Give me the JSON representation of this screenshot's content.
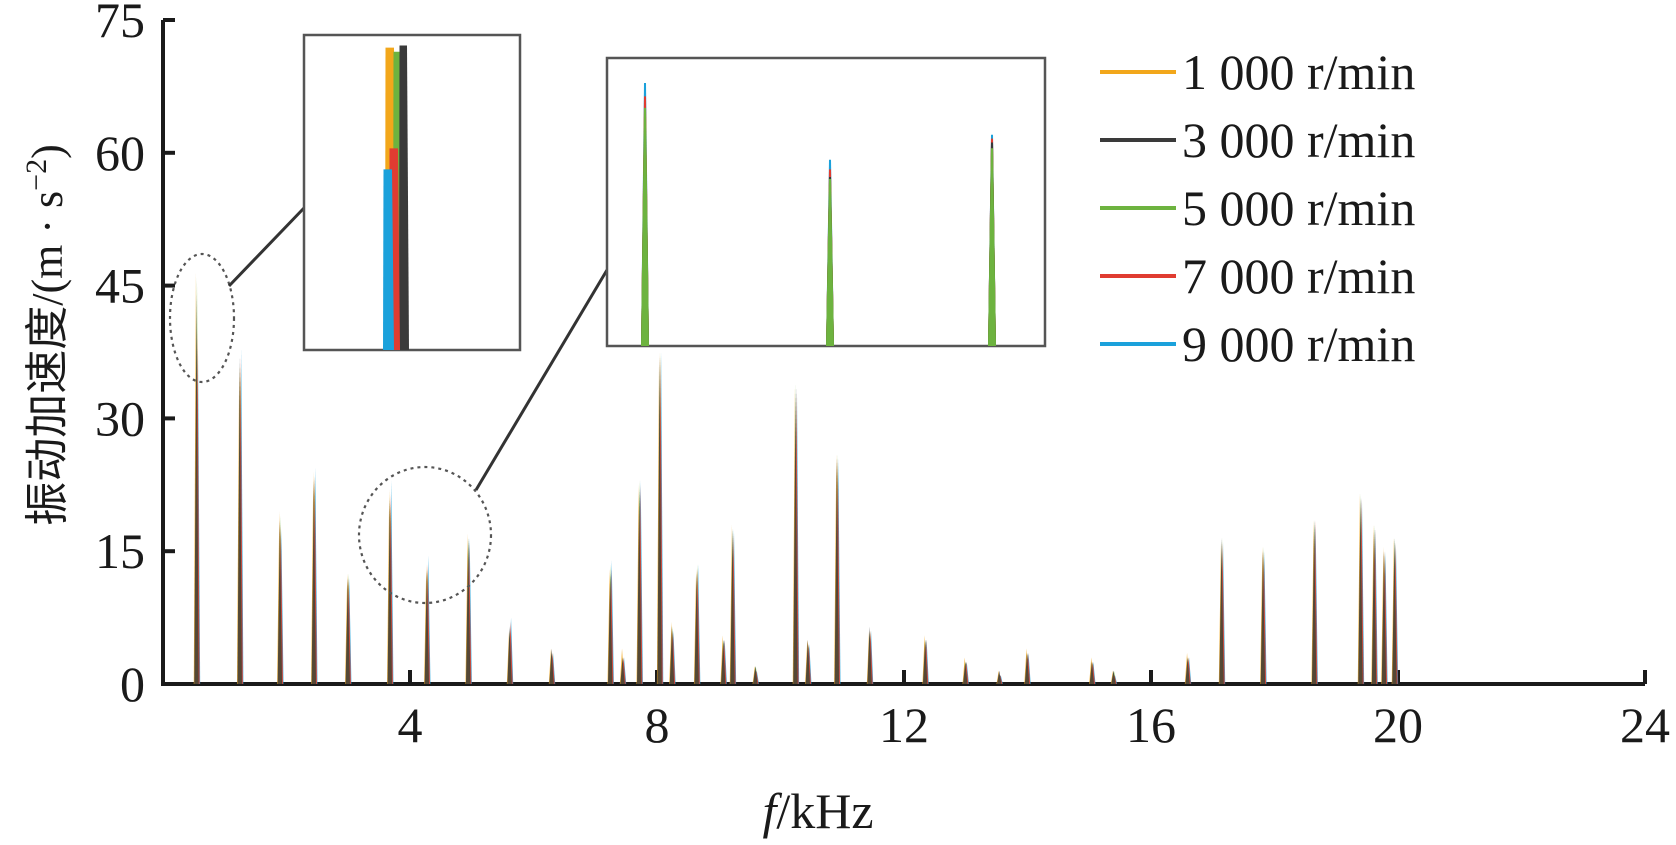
{
  "chart_data": {
    "type": "bar",
    "xlabel_italic": "f",
    "xlabel_rest": "/kHz",
    "ylabel": "振动加速度/(m · s",
    "ylabel_exp": "−2",
    "ylabel_close": ")",
    "xlim": [
      0,
      24
    ],
    "ylim": [
      0,
      75
    ],
    "x_ticks": [
      "4",
      "8",
      "12",
      "16",
      "20",
      "24"
    ],
    "y_ticks": [
      "0",
      "15",
      "30",
      "45",
      "60",
      "75"
    ],
    "grid": false,
    "legend_position": "top-right",
    "series": [
      {
        "name": "1 000 r/min",
        "color": "#F2A71B"
      },
      {
        "name": "3 000 r/min",
        "color": "#3a3a3a"
      },
      {
        "name": "5 000 r/min",
        "color": "#6DB33F"
      },
      {
        "name": "7 000 r/min",
        "color": "#E03C31"
      },
      {
        "name": "9 000 r/min",
        "color": "#1BA1DB"
      }
    ],
    "peaks": [
      {
        "f": 0.55,
        "values": [
          46.5,
          44.0,
          46.0,
          40.0,
          38.0
        ]
      },
      {
        "f": 1.25,
        "values": [
          36.0,
          37.0,
          36.0,
          37.0,
          38.0
        ]
      },
      {
        "f": 1.9,
        "values": [
          19.5,
          18.5,
          19.0,
          18.0,
          17.5
        ]
      },
      {
        "f": 2.45,
        "values": [
          24.0,
          23.0,
          23.5,
          23.5,
          24.5
        ]
      },
      {
        "f": 3.0,
        "values": [
          12.5,
          12.0,
          12.5,
          12.0,
          12.0
        ]
      },
      {
        "f": 3.68,
        "values": [
          22.0,
          21.0,
          20.5,
          21.5,
          23.0
        ]
      },
      {
        "f": 4.28,
        "values": [
          13.5,
          12.8,
          13.0,
          13.5,
          14.5
        ]
      },
      {
        "f": 4.95,
        "values": [
          17.0,
          16.5,
          16.5,
          16.0,
          16.5
        ]
      },
      {
        "f": 5.62,
        "values": [
          6.0,
          6.5,
          6.0,
          7.0,
          7.5
        ]
      },
      {
        "f": 6.3,
        "values": [
          4.0,
          4.0,
          3.5,
          3.5,
          3.5
        ]
      },
      {
        "f": 7.25,
        "values": [
          13.0,
          12.5,
          13.5,
          13.0,
          14.0
        ]
      },
      {
        "f": 7.45,
        "values": [
          4.0,
          3.0,
          3.0,
          3.0,
          3.0
        ]
      },
      {
        "f": 7.72,
        "values": [
          22.5,
          22.0,
          23.0,
          22.5,
          23.0
        ]
      },
      {
        "f": 8.05,
        "values": [
          37.5,
          37.0,
          37.5,
          37.0,
          37.5
        ]
      },
      {
        "f": 8.25,
        "values": [
          7.0,
          6.5,
          6.5,
          6.0,
          6.0
        ]
      },
      {
        "f": 8.65,
        "values": [
          13.0,
          12.5,
          13.5,
          13.0,
          13.5
        ]
      },
      {
        "f": 9.08,
        "values": [
          5.5,
          5.0,
          5.0,
          5.0,
          5.0
        ]
      },
      {
        "f": 9.23,
        "values": [
          18.0,
          17.5,
          17.5,
          17.0,
          17.5
        ]
      },
      {
        "f": 9.6,
        "values": [
          2.0,
          2.0,
          2.0,
          1.5,
          1.5
        ]
      },
      {
        "f": 10.25,
        "values": [
          33.5,
          33.0,
          34.0,
          33.5,
          33.5
        ]
      },
      {
        "f": 10.45,
        "values": [
          5.0,
          5.0,
          4.5,
          4.5,
          4.5
        ]
      },
      {
        "f": 10.92,
        "values": [
          26.0,
          25.5,
          26.0,
          25.5,
          25.5
        ]
      },
      {
        "f": 11.45,
        "values": [
          6.0,
          6.5,
          6.0,
          6.0,
          6.0
        ]
      },
      {
        "f": 12.35,
        "values": [
          5.5,
          5.0,
          5.0,
          5.0,
          5.0
        ]
      },
      {
        "f": 13.0,
        "values": [
          3.0,
          2.5,
          2.5,
          2.5,
          2.5
        ]
      },
      {
        "f": 13.55,
        "values": [
          1.5,
          1.5,
          1.0,
          1.0,
          1.0
        ]
      },
      {
        "f": 14.0,
        "values": [
          4.0,
          3.5,
          3.5,
          3.5,
          3.5
        ]
      },
      {
        "f": 15.05,
        "values": [
          3.0,
          2.5,
          2.5,
          2.5,
          2.5
        ]
      },
      {
        "f": 15.4,
        "values": [
          1.5,
          1.5,
          1.5,
          1.0,
          1.0
        ]
      },
      {
        "f": 16.6,
        "values": [
          3.5,
          3.0,
          3.0,
          3.0,
          3.0
        ]
      },
      {
        "f": 17.15,
        "values": [
          16.0,
          16.5,
          16.5,
          16.0,
          16.0
        ]
      },
      {
        "f": 17.82,
        "values": [
          15.5,
          15.0,
          15.5,
          15.0,
          15.0
        ]
      },
      {
        "f": 18.65,
        "values": [
          18.5,
          18.5,
          18.5,
          18.5,
          18.0
        ]
      },
      {
        "f": 19.4,
        "values": [
          21.5,
          21.0,
          21.5,
          21.0,
          21.0
        ]
      },
      {
        "f": 19.62,
        "values": [
          18.0,
          17.5,
          18.0,
          17.5,
          17.5
        ]
      },
      {
        "f": 19.78,
        "values": [
          15.5,
          15.0,
          15.0,
          15.0,
          15.0
        ]
      },
      {
        "f": 19.95,
        "values": [
          16.5,
          16.5,
          16.5,
          16.0,
          16.0
        ]
      }
    ],
    "inset1_peak": {
      "values": [
        72.0,
        72.5,
        71.0,
        48.0,
        43.0
      ]
    },
    "inset2_peaks": [
      {
        "values": [
          61.0,
          60.0,
          62.0,
          65.0,
          68.5
        ]
      },
      {
        "values": [
          43.0,
          44.0,
          43.5,
          46.0,
          48.5
        ]
      },
      {
        "values": [
          52.0,
          53.0,
          51.5,
          54.0,
          55.0
        ]
      }
    ]
  }
}
